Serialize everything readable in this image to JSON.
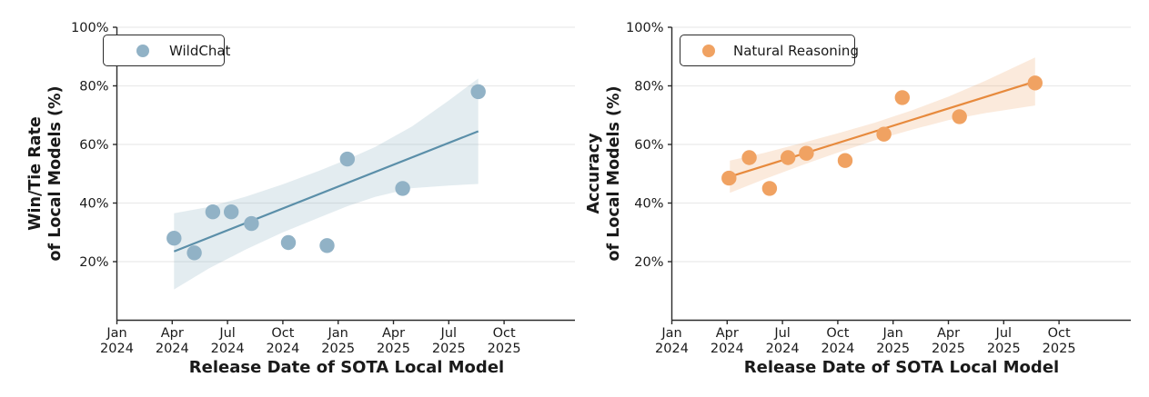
{
  "figure_background": "#ffffff",
  "chart_data": [
    {
      "type": "scatter",
      "legend_label": "WildChat",
      "ylabel_lines": [
        "Win/Tie Rate",
        "of Local Models (%)"
      ],
      "xlabel": "Release Date of SOTA Local Model",
      "ylim": [
        0,
        100
      ],
      "grid": "horizontal-only",
      "legend_position": "upper-left",
      "y_ticks": [
        {
          "value": 20,
          "label": "20%"
        },
        {
          "value": 40,
          "label": "40%"
        },
        {
          "value": 60,
          "label": "60%"
        },
        {
          "value": 80,
          "label": "80%"
        },
        {
          "value": 100,
          "label": "100%"
        }
      ],
      "x_ticks": [
        {
          "month_offset": 0,
          "line1": "Jan",
          "line2": "2024"
        },
        {
          "month_offset": 3,
          "line1": "Apr",
          "line2": "2024"
        },
        {
          "month_offset": 6,
          "line1": "Jul",
          "line2": "2024"
        },
        {
          "month_offset": 9,
          "line1": "Oct",
          "line2": "2024"
        },
        {
          "month_offset": 12,
          "line1": "Jan",
          "line2": "2025"
        },
        {
          "month_offset": 15,
          "line1": "Apr",
          "line2": "2025"
        },
        {
          "month_offset": 18,
          "line1": "Jul",
          "line2": "2025"
        },
        {
          "month_offset": 21,
          "line1": "Oct",
          "line2": "2025"
        }
      ],
      "points": [
        {
          "date": "2024-04",
          "x_months": 3.1,
          "y_pct": 28
        },
        {
          "date": "2024-05",
          "x_months": 4.2,
          "y_pct": 23
        },
        {
          "date": "2024-06",
          "x_months": 5.2,
          "y_pct": 37
        },
        {
          "date": "2024-07",
          "x_months": 6.2,
          "y_pct": 37
        },
        {
          "date": "2024-08",
          "x_months": 7.3,
          "y_pct": 33
        },
        {
          "date": "2024-10",
          "x_months": 9.3,
          "y_pct": 26.5
        },
        {
          "date": "2024-12",
          "x_months": 11.4,
          "y_pct": 25.5
        },
        {
          "date": "2025-01",
          "x_months": 12.5,
          "y_pct": 55
        },
        {
          "date": "2025-04",
          "x_months": 15.5,
          "y_pct": 45
        },
        {
          "date": "2025-08",
          "x_months": 19.6,
          "y_pct": 78
        }
      ],
      "trend_line": {
        "x1_months": 3.1,
        "y1_pct": 23.5,
        "x2_months": 19.6,
        "y2_pct": 64.5
      },
      "confidence_band": {
        "x_months": [
          3.1,
          5,
          7,
          9,
          11,
          12.5,
          14,
          16,
          18,
          19.6
        ],
        "upper_pct": [
          36.5,
          38.7,
          42.2,
          46.4,
          51.1,
          54.9,
          59.1,
          66.1,
          75.0,
          82.5
        ],
        "lower_pct": [
          10.5,
          17.7,
          24.2,
          30.0,
          35.1,
          38.9,
          42.1,
          45.1,
          46.0,
          46.5
        ]
      },
      "colors": {
        "dot": "#91b2c6",
        "line": "#5b8fa9",
        "band_fill": "#5b8fa9",
        "band_opacity": 0.17
      }
    },
    {
      "type": "scatter",
      "legend_label": "Natural Reasoning",
      "ylabel_lines": [
        "Accuracy",
        "of Local Models (%)"
      ],
      "xlabel": "Release Date of SOTA Local Model",
      "ylim": [
        0,
        100
      ],
      "grid": "horizontal-only",
      "legend_position": "upper-left",
      "y_ticks": [
        {
          "value": 20,
          "label": "20%"
        },
        {
          "value": 40,
          "label": "40%"
        },
        {
          "value": 60,
          "label": "60%"
        },
        {
          "value": 80,
          "label": "80%"
        },
        {
          "value": 100,
          "label": "100%"
        }
      ],
      "x_ticks": [
        {
          "month_offset": 0,
          "line1": "Jan",
          "line2": "2024"
        },
        {
          "month_offset": 3,
          "line1": "Apr",
          "line2": "2024"
        },
        {
          "month_offset": 6,
          "line1": "Jul",
          "line2": "2024"
        },
        {
          "month_offset": 9,
          "line1": "Oct",
          "line2": "2024"
        },
        {
          "month_offset": 12,
          "line1": "Jan",
          "line2": "2025"
        },
        {
          "month_offset": 15,
          "line1": "Apr",
          "line2": "2025"
        },
        {
          "month_offset": 18,
          "line1": "Jul",
          "line2": "2025"
        },
        {
          "month_offset": 21,
          "line1": "Oct",
          "line2": "2025"
        }
      ],
      "points": [
        {
          "date": "2024-04",
          "x_months": 3.1,
          "y_pct": 48.5
        },
        {
          "date": "2024-05",
          "x_months": 4.2,
          "y_pct": 55.5
        },
        {
          "date": "2024-06",
          "x_months": 5.3,
          "y_pct": 45
        },
        {
          "date": "2024-07",
          "x_months": 6.3,
          "y_pct": 55.5
        },
        {
          "date": "2024-08",
          "x_months": 7.3,
          "y_pct": 57
        },
        {
          "date": "2024-10",
          "x_months": 9.4,
          "y_pct": 54.5
        },
        {
          "date": "2024-12",
          "x_months": 11.5,
          "y_pct": 63.5
        },
        {
          "date": "2025-01",
          "x_months": 12.5,
          "y_pct": 76
        },
        {
          "date": "2025-04",
          "x_months": 15.6,
          "y_pct": 69.5
        },
        {
          "date": "2025-08",
          "x_months": 19.7,
          "y_pct": 81
        }
      ],
      "trend_line": {
        "x1_months": 3.15,
        "y1_pct": 49,
        "x2_months": 19.7,
        "y2_pct": 81.5
      },
      "confidence_band": {
        "x_months": [
          3.15,
          5,
          7,
          9,
          11,
          13,
          15,
          17,
          19.7
        ],
        "upper_pct": [
          54.5,
          57.1,
          60.4,
          63.8,
          67.4,
          71.6,
          76.3,
          81.7,
          89.7
        ],
        "lower_pct": [
          43.5,
          48.1,
          52.8,
          57.2,
          61.4,
          65.0,
          68.3,
          70.7,
          73.3
        ]
      },
      "colors": {
        "dot": "#f0a262",
        "line": "#e78a3d",
        "band_fill": "#e78a3d",
        "band_opacity": 0.18
      }
    }
  ]
}
